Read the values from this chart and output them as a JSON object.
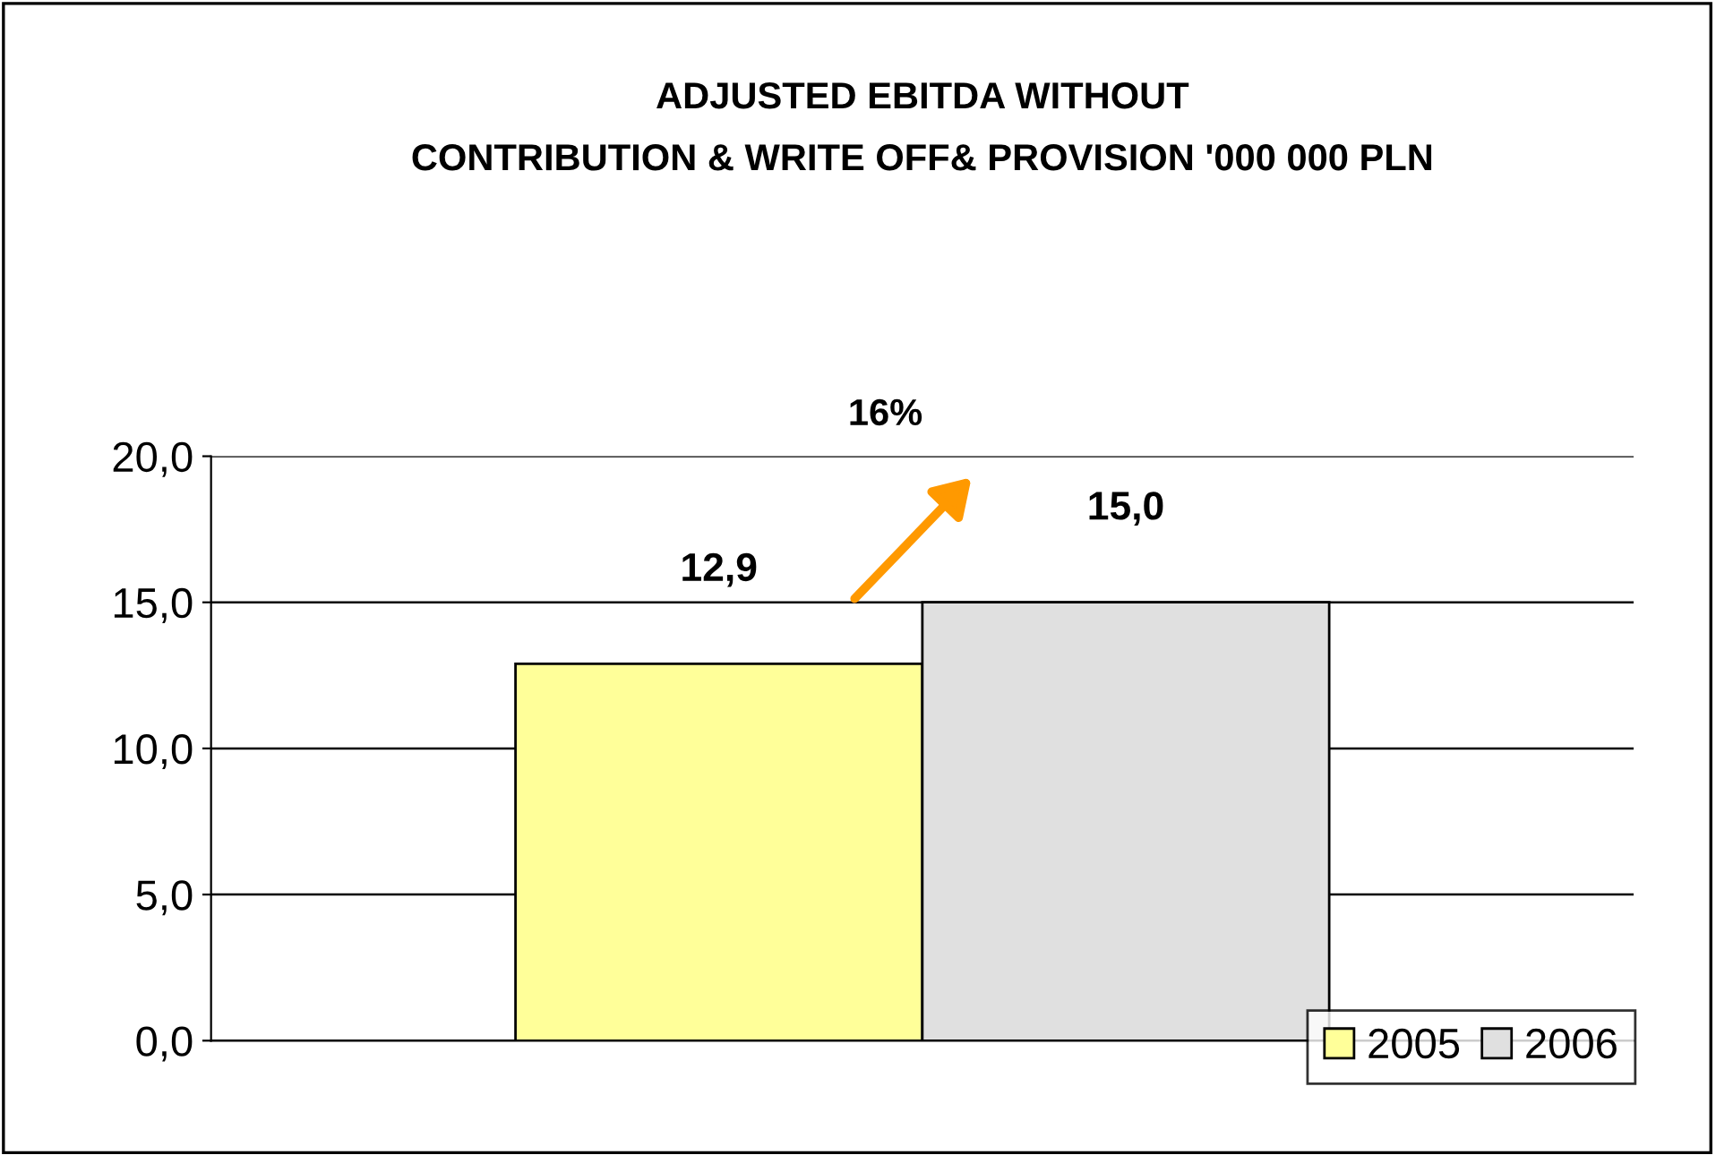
{
  "chart_data": {
    "type": "bar",
    "title": "ADJUSTED EBITDA WITHOUT\nCONTRIBUTION & WRITE OFF& PROVISION '000 000 PLN",
    "categories": [
      null
    ],
    "series": [
      {
        "name": "2005",
        "color": "#ffff99",
        "values": [
          12.9
        ],
        "value_labels": [
          "12,9"
        ]
      },
      {
        "name": "2006",
        "color": "#e0e0e0",
        "values": [
          15.0
        ],
        "value_labels": [
          "15,0"
        ]
      }
    ],
    "ylim": [
      0,
      20
    ],
    "yticks": [
      {
        "value": 0,
        "label": "0,0"
      },
      {
        "value": 5,
        "label": "5,0"
      },
      {
        "value": 10,
        "label": "10,0"
      },
      {
        "value": 15,
        "label": "15,0"
      },
      {
        "value": 20,
        "label": "20,0"
      }
    ],
    "grid": "y",
    "legend": "bottom right",
    "annotations": [
      "16%"
    ]
  }
}
